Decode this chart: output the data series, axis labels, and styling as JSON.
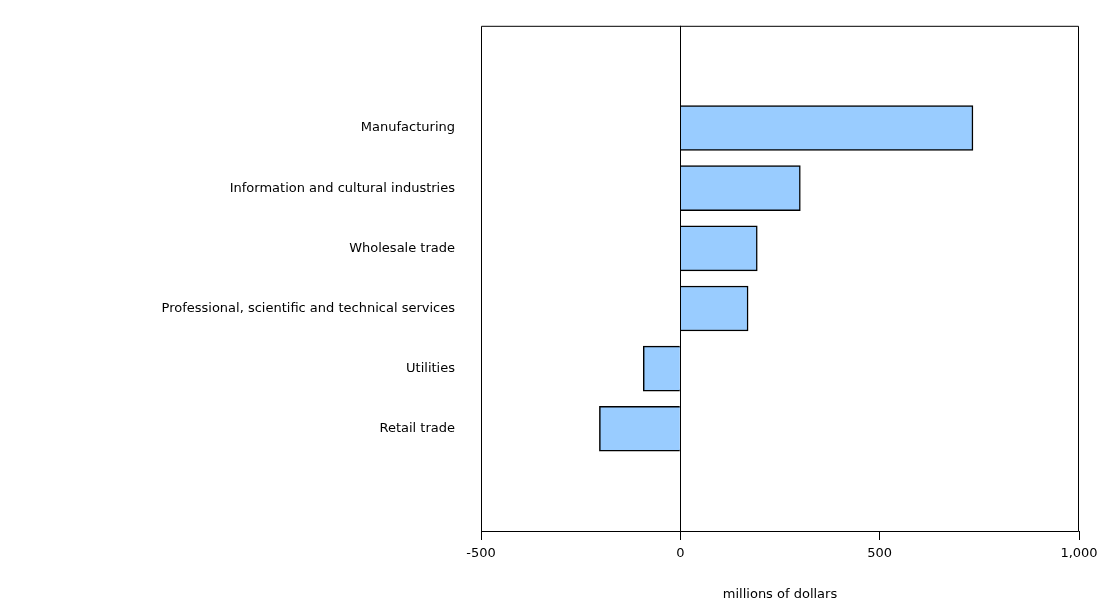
{
  "chart_data": {
    "type": "bar",
    "orientation": "horizontal",
    "xlabel": "millions of dollars",
    "categories": [
      "Manufacturing",
      "Information and cultural industries",
      "Wholesale trade",
      "Professional, scientific and technical services",
      "Utilities",
      "Retail trade"
    ],
    "values": [
      734,
      301,
      193,
      170,
      -93,
      -203
    ],
    "color": "#99ccff",
    "xlim": [
      -500,
      1000
    ],
    "xticks": [
      -500,
      0,
      500,
      {
        "value": 1000,
        "label": "1,000"
      }
    ],
    "ref_lines": [
      {
        "axis": "x",
        "value": 0,
        "label": null
      }
    ],
    "grid": false,
    "legend": false
  }
}
